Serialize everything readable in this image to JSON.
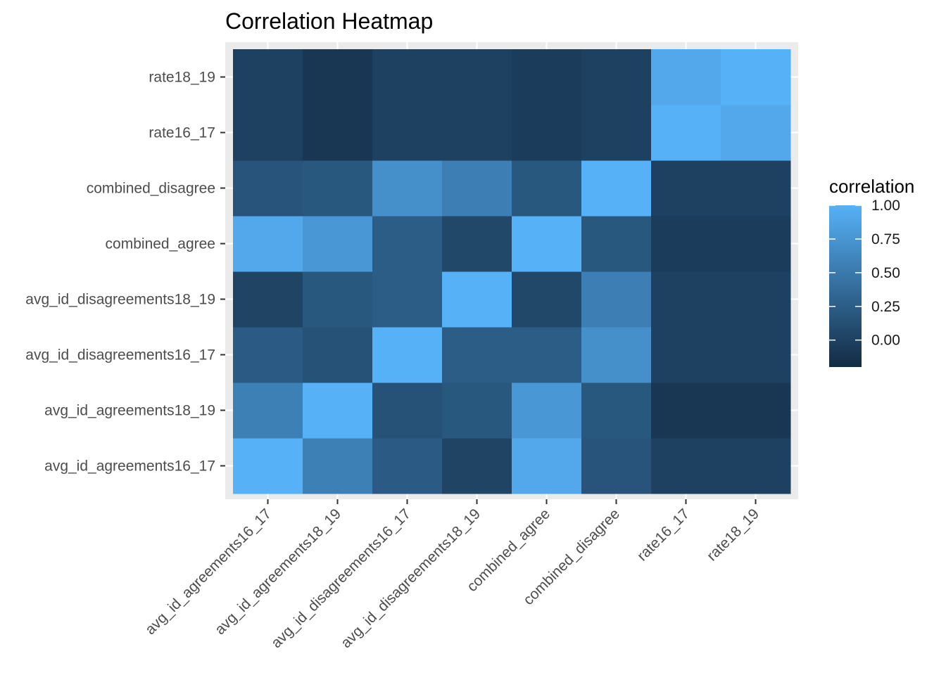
{
  "chart_data": {
    "type": "heatmap",
    "title": "Correlation Heatmap",
    "xlabel": "",
    "ylabel": "",
    "x_categories": [
      "avg_id_agreements16_17",
      "avg_id_agreements18_19",
      "avg_id_disagreements16_17",
      "avg_id_disagreements18_19",
      "combined_agree",
      "combined_disagree",
      "rate16_17",
      "rate18_19"
    ],
    "y_categories": [
      "avg_id_agreements16_17",
      "avg_id_agreements18_19",
      "avg_id_disagreements16_17",
      "avg_id_disagreements18_19",
      "combined_agree",
      "combined_disagree",
      "rate16_17",
      "rate18_19"
    ],
    "values": [
      [
        1.0,
        0.56,
        0.23,
        0.02,
        0.92,
        0.17,
        0.0,
        0.0
      ],
      [
        0.56,
        1.0,
        0.15,
        0.2,
        0.77,
        0.2,
        -0.1,
        -0.1
      ],
      [
        0.23,
        0.15,
        1.0,
        0.25,
        0.25,
        0.7,
        0.0,
        0.0
      ],
      [
        0.02,
        0.2,
        0.25,
        1.0,
        0.05,
        0.55,
        0.0,
        0.0
      ],
      [
        0.92,
        0.77,
        0.25,
        0.05,
        1.0,
        0.2,
        -0.05,
        -0.05
      ],
      [
        0.17,
        0.2,
        0.7,
        0.55,
        0.2,
        1.0,
        0.0,
        0.0
      ],
      [
        0.0,
        -0.1,
        0.0,
        0.0,
        -0.05,
        0.0,
        1.0,
        0.92
      ],
      [
        0.0,
        -0.1,
        0.0,
        0.0,
        -0.05,
        0.0,
        0.92,
        1.0
      ]
    ],
    "legend": {
      "title": "correlation",
      "ticks": [
        1.0,
        0.75,
        0.5,
        0.25,
        0.0
      ],
      "tick_labels": [
        "1.00",
        "0.75",
        "0.50",
        "0.25",
        "0.00"
      ],
      "range": [
        -0.2,
        1.0
      ],
      "low_color": "#132B43",
      "high_color": "#56B1F7",
      "placement": "right"
    },
    "panel_background": "#EBEBEB",
    "grid": true
  }
}
